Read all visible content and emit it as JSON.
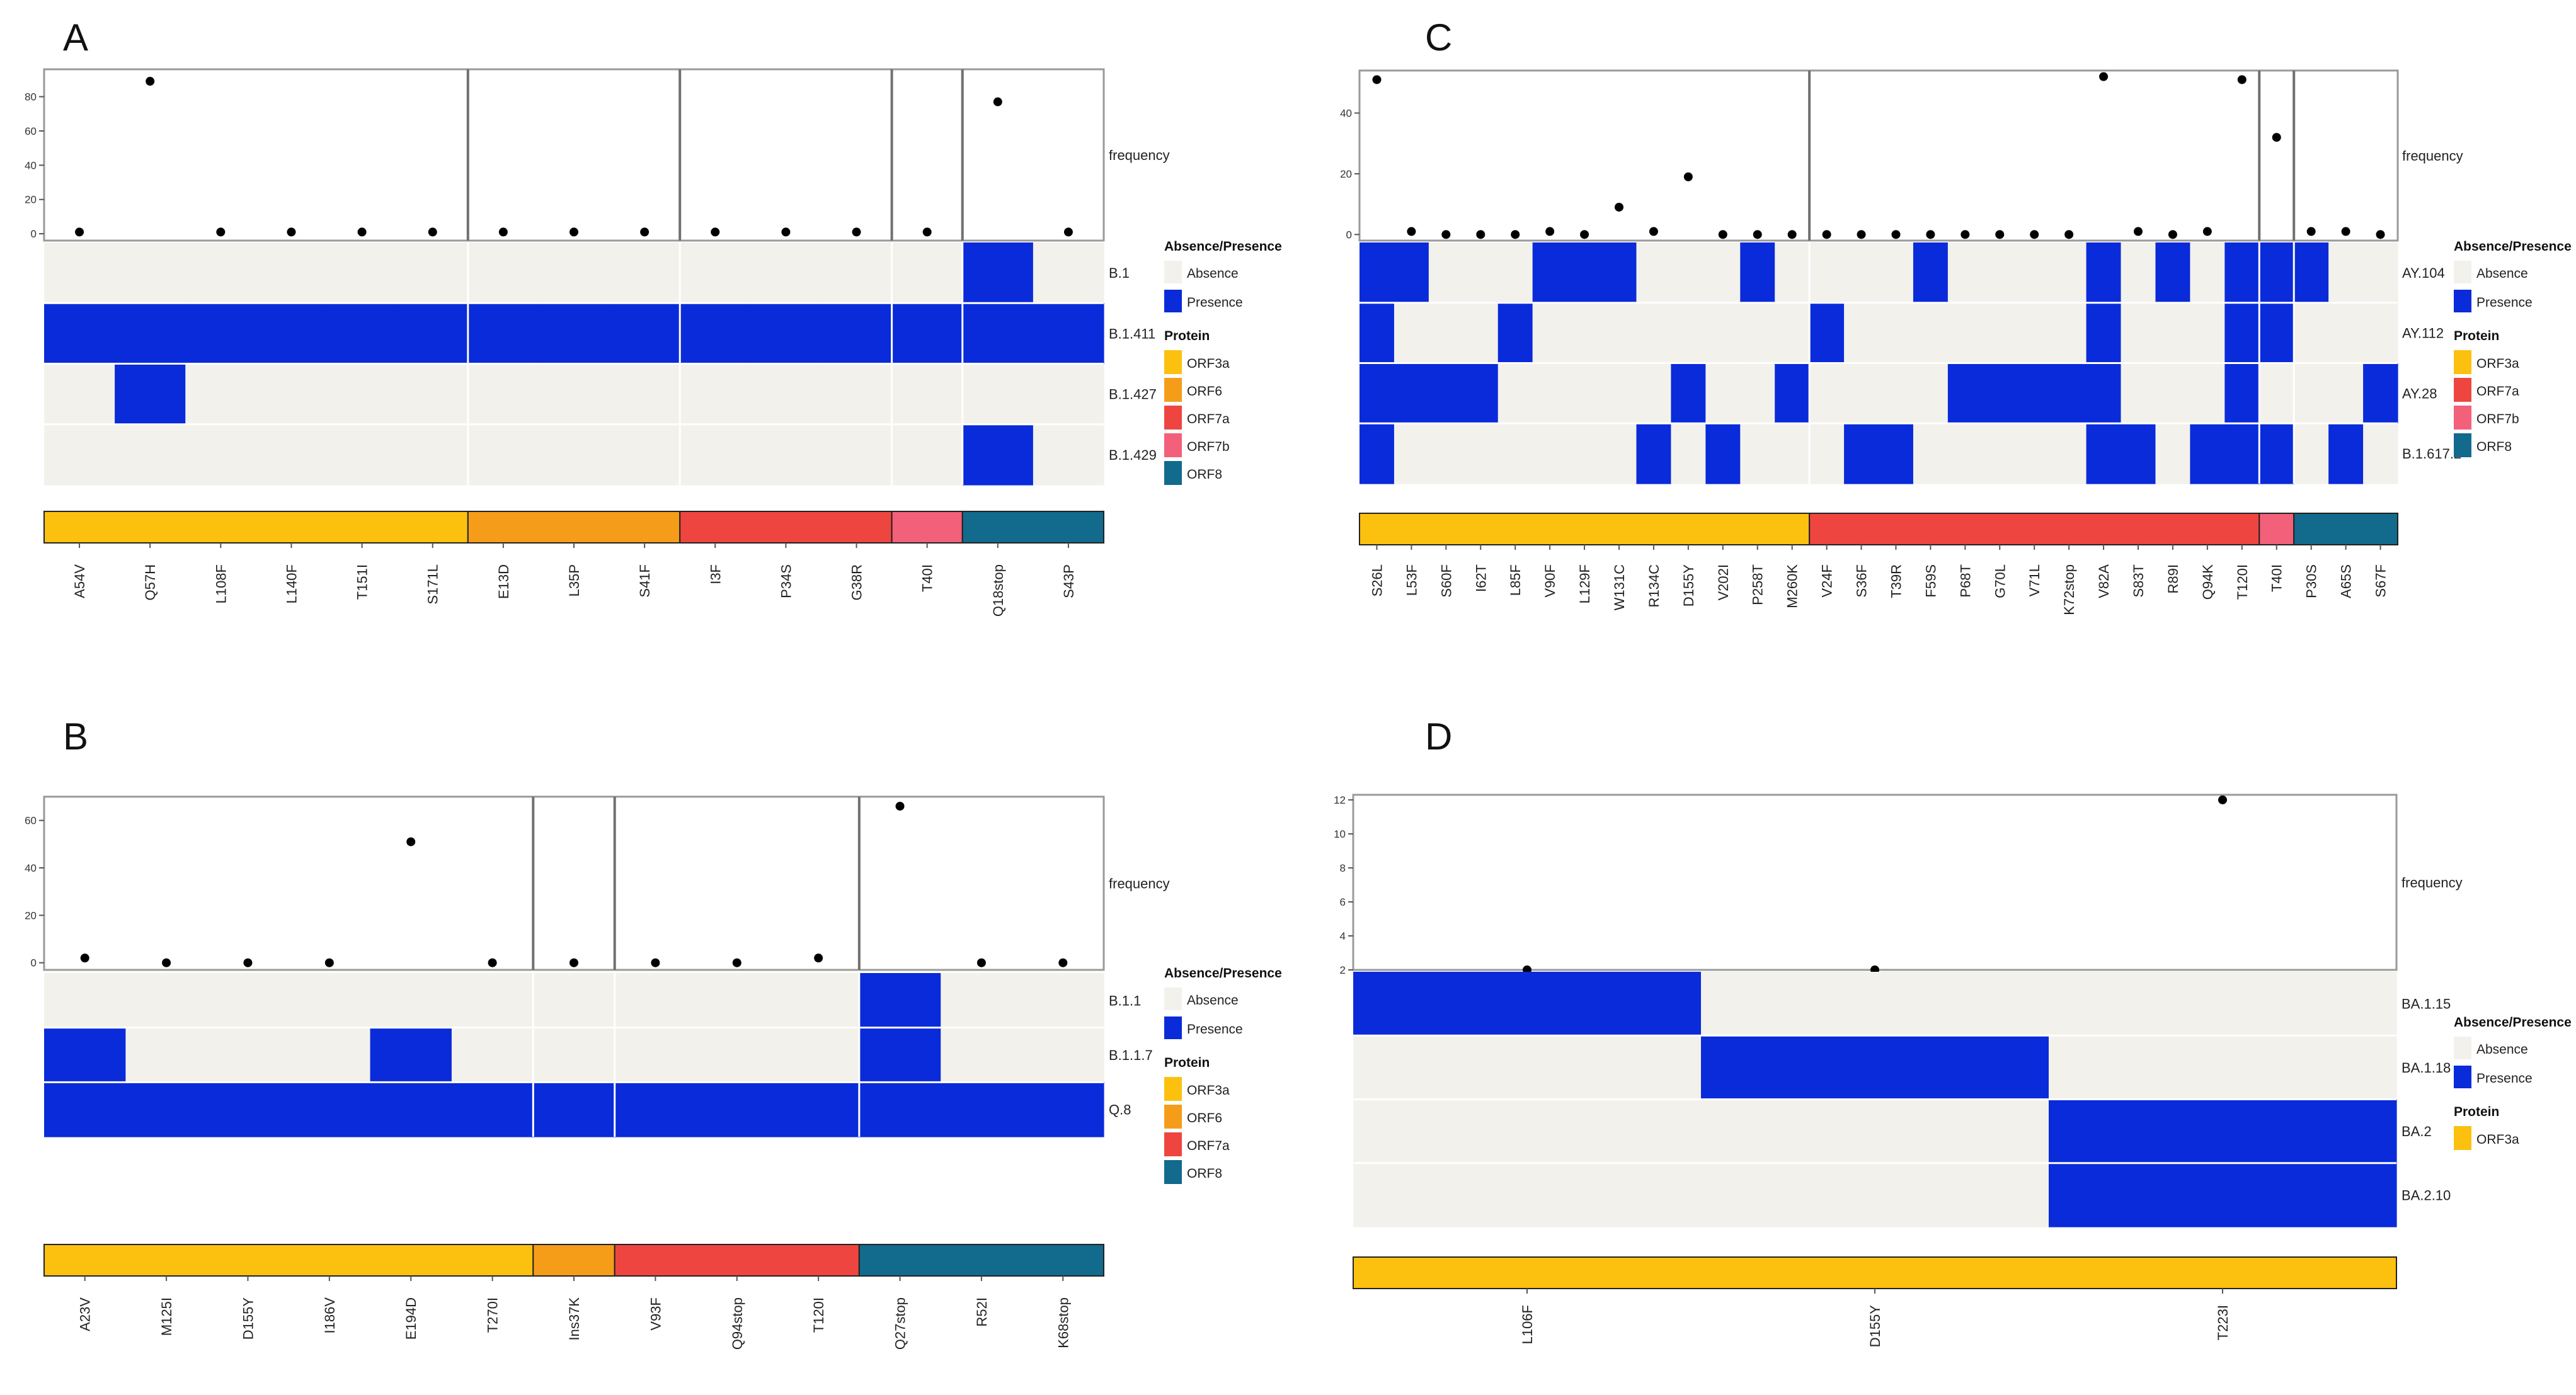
{
  "colors": {
    "absence": "#f3f1ec",
    "presence": "#0a2bd9",
    "ORF3a": "#fcc10f",
    "ORF6": "#f59d19",
    "ORF7a": "#ef4540",
    "ORF7b": "#f2607a",
    "ORF8": "#126a8c",
    "point": "#000000"
  },
  "legend": {
    "ap_title": "Absence/Presence",
    "absence": "Absence",
    "presence": "Presence",
    "protein_title": "Protein"
  },
  "chart_data": [
    {
      "panel": "A",
      "type": "heatmap",
      "ylabel": "frequency",
      "yticks": [
        0,
        20,
        40,
        60,
        80
      ],
      "ylim": [
        -4,
        96
      ],
      "mutations": [
        "A54V",
        "Q57H",
        "L108F",
        "L140F",
        "T151I",
        "S171L",
        "E13D",
        "L35P",
        "S41F",
        "I3F",
        "P34S",
        "G38R",
        "T40I",
        "Q18stop",
        "S43P"
      ],
      "proteins": [
        "ORF3a",
        "ORF3a",
        "ORF3a",
        "ORF3a",
        "ORF3a",
        "ORF3a",
        "ORF6",
        "ORF6",
        "ORF6",
        "ORF7a",
        "ORF7a",
        "ORF7a",
        "ORF7b",
        "ORF8",
        "ORF8"
      ],
      "frequency": [
        1,
        89,
        1,
        1,
        1,
        1,
        1,
        1,
        1,
        1,
        1,
        1,
        1,
        77,
        1
      ],
      "lineages": [
        "B.1",
        "B.1.411",
        "B.1.427",
        "B.1.429"
      ],
      "presence": [
        [
          0,
          0,
          0,
          0,
          0,
          0,
          0,
          0,
          0,
          0,
          0,
          0,
          0,
          1,
          0
        ],
        [
          1,
          1,
          1,
          1,
          1,
          1,
          1,
          1,
          1,
          1,
          1,
          1,
          1,
          1,
          1
        ],
        [
          0,
          1,
          0,
          0,
          0,
          0,
          0,
          0,
          0,
          0,
          0,
          0,
          0,
          0,
          0
        ],
        [
          0,
          0,
          0,
          0,
          0,
          0,
          0,
          0,
          0,
          0,
          0,
          0,
          0,
          1,
          0
        ]
      ],
      "legend_proteins": [
        "ORF3a",
        "ORF6",
        "ORF7a",
        "ORF7b",
        "ORF8"
      ]
    },
    {
      "panel": "B",
      "type": "heatmap",
      "ylabel": "frequency",
      "yticks": [
        0,
        20,
        40,
        60
      ],
      "ylim": [
        -3,
        70
      ],
      "mutations": [
        "A23V",
        "M125I",
        "D155Y",
        "I186V",
        "E194D",
        "T270I",
        "Ins37K",
        "V93F",
        "Q94stop",
        "T120I",
        "Q27stop",
        "R52I",
        "K68stop"
      ],
      "proteins": [
        "ORF3a",
        "ORF3a",
        "ORF3a",
        "ORF3a",
        "ORF3a",
        "ORF3a",
        "ORF6",
        "ORF7a",
        "ORF7a",
        "ORF7a",
        "ORF8",
        "ORF8",
        "ORF8"
      ],
      "frequency": [
        2,
        0,
        0,
        0,
        51,
        0,
        0,
        0,
        0,
        2,
        66,
        0,
        0
      ],
      "lineages": [
        "B.1.1",
        "B.1.1.7",
        "Q.8"
      ],
      "presence": [
        [
          0,
          0,
          0,
          0,
          0,
          0,
          0,
          0,
          0,
          0,
          1,
          0,
          0
        ],
        [
          1,
          0,
          0,
          0,
          1,
          0,
          0,
          0,
          0,
          0,
          1,
          0,
          0
        ],
        [
          1,
          1,
          1,
          1,
          1,
          1,
          1,
          1,
          1,
          1,
          1,
          1,
          1
        ]
      ],
      "legend_proteins": [
        "ORF3a",
        "ORF6",
        "ORF7a",
        "ORF8"
      ]
    },
    {
      "panel": "C",
      "type": "heatmap",
      "ylabel": "frequency",
      "yticks": [
        0,
        20,
        40
      ],
      "ylim": [
        -2,
        54
      ],
      "mutations": [
        "S26L",
        "L53F",
        "S60F",
        "I62T",
        "L85F",
        "V90F",
        "L129F",
        "W131C",
        "R134C",
        "D155Y",
        "V202I",
        "P258T",
        "M260K",
        "V24F",
        "S36F",
        "T39R",
        "F59S",
        "P68T",
        "G70L",
        "V71L",
        "K72stop",
        "V82A",
        "S83T",
        "R89I",
        "Q94K",
        "T120I",
        "T40I",
        "P30S",
        "A65S",
        "S67F"
      ],
      "proteins": [
        "ORF3a",
        "ORF3a",
        "ORF3a",
        "ORF3a",
        "ORF3a",
        "ORF3a",
        "ORF3a",
        "ORF3a",
        "ORF3a",
        "ORF3a",
        "ORF3a",
        "ORF3a",
        "ORF3a",
        "ORF7a",
        "ORF7a",
        "ORF7a",
        "ORF7a",
        "ORF7a",
        "ORF7a",
        "ORF7a",
        "ORF7a",
        "ORF7a",
        "ORF7a",
        "ORF7a",
        "ORF7a",
        "ORF7a",
        "ORF7b",
        "ORF8",
        "ORF8",
        "ORF8"
      ],
      "frequency": [
        51,
        1,
        0,
        0,
        0,
        1,
        0,
        9,
        1,
        19,
        0,
        0,
        0,
        0,
        0,
        0,
        0,
        0,
        0,
        0,
        0,
        52,
        1,
        0,
        1,
        51,
        32,
        1,
        1,
        0
      ],
      "lineages": [
        "AY.104",
        "AY.112",
        "AY.28",
        "B.1.617.2"
      ],
      "presence": [
        [
          1,
          1,
          0,
          0,
          0,
          1,
          1,
          1,
          0,
          0,
          0,
          1,
          0,
          0,
          0,
          0,
          1,
          0,
          0,
          0,
          0,
          1,
          0,
          1,
          0,
          1,
          1,
          1,
          0,
          0
        ],
        [
          1,
          0,
          0,
          0,
          1,
          0,
          0,
          0,
          0,
          0,
          0,
          0,
          0,
          1,
          0,
          0,
          0,
          0,
          0,
          0,
          0,
          1,
          0,
          0,
          0,
          1,
          1,
          0,
          0,
          0
        ],
        [
          1,
          1,
          1,
          1,
          0,
          0,
          0,
          0,
          0,
          1,
          0,
          0,
          1,
          0,
          0,
          0,
          0,
          1,
          1,
          1,
          1,
          1,
          0,
          0,
          0,
          1,
          0,
          0,
          0,
          1
        ],
        [
          1,
          0,
          0,
          0,
          0,
          0,
          0,
          0,
          1,
          0,
          1,
          0,
          0,
          0,
          1,
          1,
          0,
          0,
          0,
          0,
          0,
          1,
          1,
          0,
          1,
          1,
          1,
          0,
          1,
          0
        ]
      ],
      "legend_proteins": [
        "ORF3a",
        "ORF7a",
        "ORF7b",
        "ORF8"
      ]
    },
    {
      "panel": "D",
      "type": "heatmap",
      "ylabel": "frequency",
      "yticks": [
        2,
        4,
        6,
        8,
        10,
        12
      ],
      "ylim": [
        2,
        12.3
      ],
      "mutations": [
        "L106F",
        "D155Y",
        "T223I"
      ],
      "proteins": [
        "ORF3a",
        "ORF3a",
        "ORF3a"
      ],
      "frequency": [
        2,
        2,
        12
      ],
      "lineages": [
        "BA.1.15",
        "BA.1.18",
        "BA.2",
        "BA.2.10"
      ],
      "presence": [
        [
          1,
          0,
          0
        ],
        [
          0,
          1,
          0
        ],
        [
          0,
          0,
          1
        ],
        [
          0,
          0,
          1
        ]
      ],
      "legend_proteins": [
        "ORF3a"
      ]
    }
  ]
}
